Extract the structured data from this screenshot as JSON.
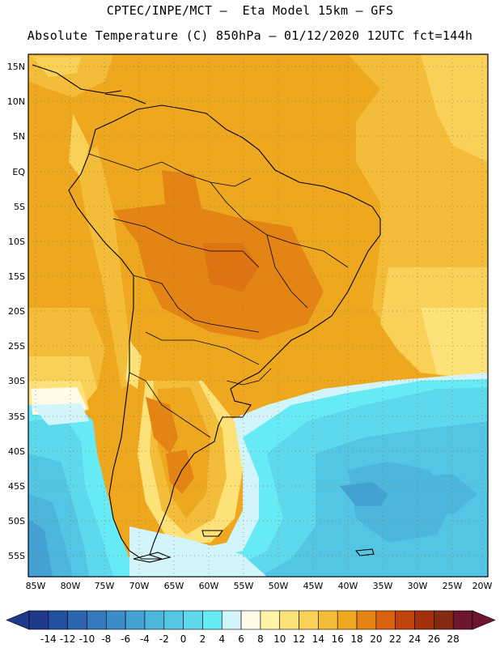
{
  "header": {
    "line1": "CPTEC/INPE/MCT –  Eta Model 15km – GFS",
    "line2": "Absolute Temperature (C) 850hPa – 01/12/2020 12UTC fct=144h"
  },
  "map": {
    "lat_labels": [
      "15N",
      "10N",
      "5N",
      "EQ",
      "5S",
      "10S",
      "15S",
      "20S",
      "25S",
      "30S",
      "35S",
      "40S",
      "45S",
      "50S",
      "55S"
    ],
    "lon_labels": [
      "85W",
      "80W",
      "75W",
      "70W",
      "65W",
      "60W",
      "55W",
      "50W",
      "45W",
      "40W",
      "35W",
      "30W",
      "25W",
      "20W"
    ],
    "lat_range": [
      15,
      -55
    ],
    "lon_range": [
      -85,
      -20
    ]
  },
  "colorbar": {
    "labels": [
      "-14",
      "-12",
      "-10",
      "-8",
      "-6",
      "-4",
      "-2",
      "0",
      "2",
      "4",
      "6",
      "8",
      "10",
      "12",
      "14",
      "16",
      "18",
      "20",
      "22",
      "24",
      "26",
      "28"
    ],
    "colors": [
      "#1e3a8a",
      "#23519f",
      "#2d66b0",
      "#3478bd",
      "#3c8cc9",
      "#44a1d3",
      "#4cb6dc",
      "#52c6e4",
      "#5dd8ec",
      "#66eaf5",
      "#d2f5fb",
      "#fffbe8",
      "#fff3a6",
      "#fde27a",
      "#f9d158",
      "#f3bd3a",
      "#eea820",
      "#e48414",
      "#d8620e",
      "#bf430c",
      "#a3300c",
      "#852a12",
      "#6e1630"
    ]
  }
}
